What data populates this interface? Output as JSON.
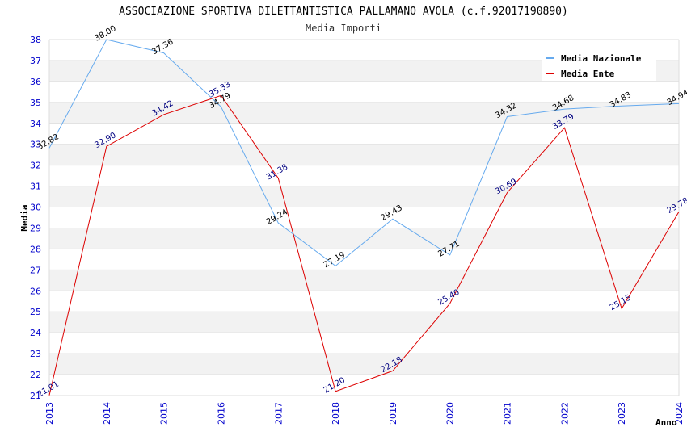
{
  "chart_data": {
    "type": "line",
    "title": "ASSOCIAZIONE SPORTIVA DILETTANTISTICA PALLAMANO AVOLA (c.f.92017190890)",
    "subtitle": "Media Importi",
    "xlabel": "Anno",
    "ylabel": "Media",
    "ylim": [
      21,
      38
    ],
    "yticks": [
      "21",
      "22",
      "23",
      "24",
      "25",
      "26",
      "27",
      "28",
      "29",
      "30",
      "31",
      "32",
      "33",
      "34",
      "35",
      "36",
      "37",
      "38"
    ],
    "categories": [
      "2013",
      "2014",
      "2015",
      "2016",
      "2017",
      "2018",
      "2019",
      "2020",
      "2021",
      "2022",
      "2023",
      "2024"
    ],
    "grid": "horizontal alternating bands",
    "legend_position": "top-right",
    "series": [
      {
        "name": "Media Nazionale",
        "color": "#66aaee",
        "label_color": "#000000",
        "values": [
          32.82,
          38.0,
          37.36,
          34.79,
          29.24,
          27.19,
          29.43,
          27.71,
          34.32,
          34.68,
          34.83,
          34.94
        ],
        "labels": [
          "32.82",
          "38.00",
          "37.36",
          "34.79",
          "29.24",
          "27.19",
          "29.43",
          "27.71",
          "34.32",
          "34.68",
          "34.83",
          "34.94"
        ]
      },
      {
        "name": "Media Ente",
        "color": "#dd0000",
        "label_color": "#000080",
        "values": [
          21.01,
          32.9,
          34.42,
          35.33,
          31.38,
          21.2,
          22.18,
          25.4,
          30.69,
          33.79,
          25.15,
          29.78
        ],
        "labels": [
          "21.01",
          "32.90",
          "34.42",
          "35.33",
          "31.38",
          "21.20",
          "22.18",
          "25.40",
          "30.69",
          "33.79",
          "25.15",
          "29.78"
        ]
      }
    ]
  }
}
